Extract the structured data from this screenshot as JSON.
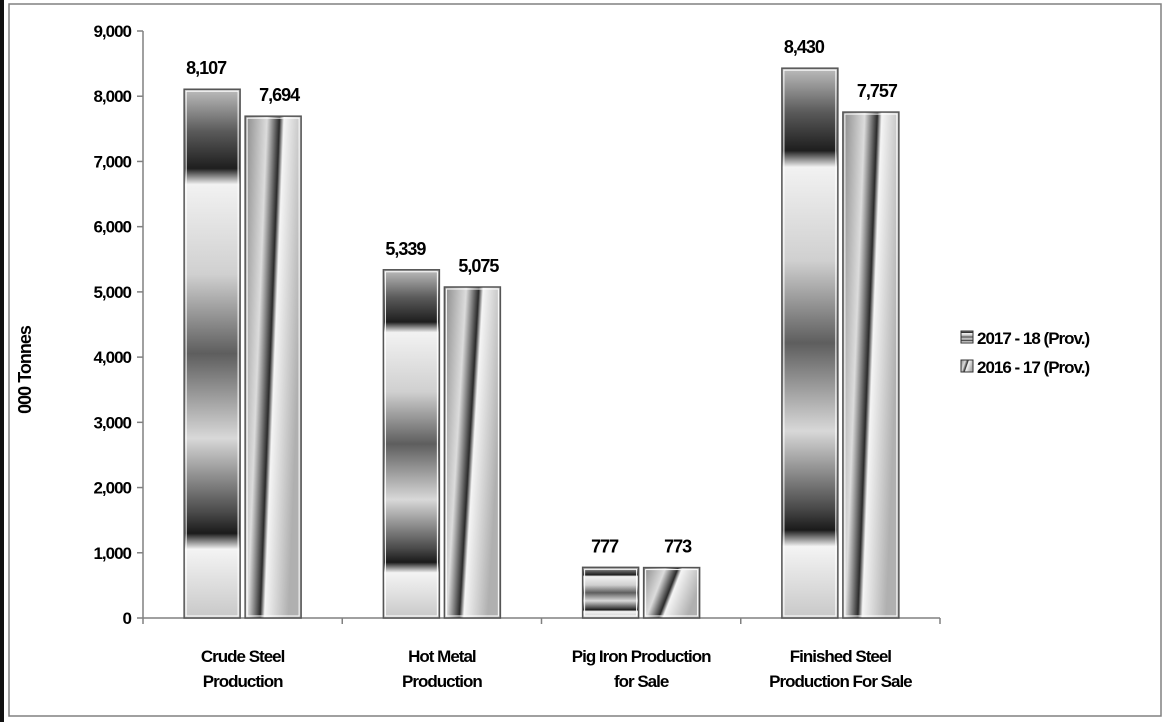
{
  "chart_data": {
    "type": "bar",
    "title": "",
    "xlabel": "",
    "ylabel": "000 Tonnes",
    "ylim": [
      0,
      9000
    ],
    "ytick_step": 1000,
    "ytick_labels": [
      "0",
      "1,000",
      "2,000",
      "3,000",
      "4,000",
      "5,000",
      "6,000",
      "7,000",
      "8,000",
      "9,000"
    ],
    "categories": [
      [
        "Crude Steel",
        "Production"
      ],
      [
        "Hot Metal",
        "Production"
      ],
      [
        "Pig Iron Production",
        "for Sale"
      ],
      [
        "Finished Steel",
        "Production For Sale"
      ]
    ],
    "series": [
      {
        "name": "2017 - 18 (Prov.)",
        "values": [
          8107,
          5339,
          777,
          8430
        ],
        "labels": [
          "8,107",
          "5,339",
          "777",
          "8,430"
        ]
      },
      {
        "name": "2016 - 17 (Prov.)",
        "values": [
          7694,
          5075,
          773,
          7757
        ],
        "labels": [
          "7,694",
          "5,075",
          "773",
          "7,757"
        ]
      }
    ],
    "legend_position": "right",
    "grid": false,
    "colors": {
      "dark": "#1a1a1a",
      "mid": "#6e6e6e",
      "light": "#e8e8e8",
      "border": "#555555"
    }
  }
}
